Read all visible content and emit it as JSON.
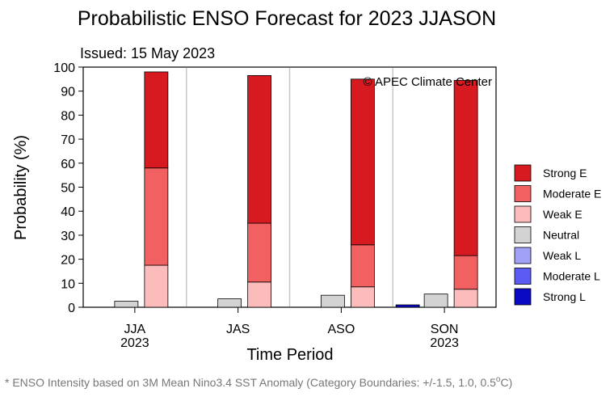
{
  "chart_data": {
    "type": "bar",
    "stacked": true,
    "title": "Probabilistic ENSO Forecast for 2023 JJASON",
    "subtitle": "Issued: 15 May 2023",
    "credit": "© APEC Climate Center",
    "xlabel": "Time Period",
    "ylabel": "Probability (%)",
    "ylim": [
      0,
      100
    ],
    "yticks": [
      0,
      10,
      20,
      30,
      40,
      50,
      60,
      70,
      80,
      90,
      100
    ],
    "categories": [
      {
        "label": "JJA",
        "year": "2023"
      },
      {
        "label": "JAS",
        "year": ""
      },
      {
        "label": "ASO",
        "year": ""
      },
      {
        "label": "SON",
        "year": "2023"
      }
    ],
    "series": [
      {
        "name": "Strong E",
        "color": "#d71a1f",
        "group": "elnino",
        "values": [
          40,
          61.5,
          69,
          73
        ]
      },
      {
        "name": "Moderate E",
        "color": "#f26161",
        "group": "elnino",
        "values": [
          40.5,
          24.5,
          17.5,
          14
        ]
      },
      {
        "name": "Weak E",
        "color": "#fcbcbc",
        "group": "elnino",
        "values": [
          17.5,
          10.5,
          8.5,
          7.5
        ]
      },
      {
        "name": "Neutral",
        "color": "#d3d3d3",
        "group": "neutral",
        "values": [
          2.5,
          3.5,
          5,
          5.5
        ]
      },
      {
        "name": "Weak L",
        "color": "#a1a1f7",
        "group": "lanina",
        "values": [
          0,
          0,
          0,
          0
        ]
      },
      {
        "name": "Moderate L",
        "color": "#5c5cf5",
        "group": "lanina",
        "values": [
          0,
          0,
          0,
          0
        ]
      },
      {
        "name": "Strong L",
        "color": "#0a0ac4",
        "group": "lanina",
        "values": [
          0,
          0,
          0,
          1
        ]
      }
    ],
    "legend_position": "right",
    "footnote": "* ENSO Intensity based on 3M Mean Nino3.4 SST Anomaly (Category Boundaries: +/-1.5, 1.0, 0.5",
    "footnote_unit": "o",
    "footnote_suffix": "C)"
  }
}
